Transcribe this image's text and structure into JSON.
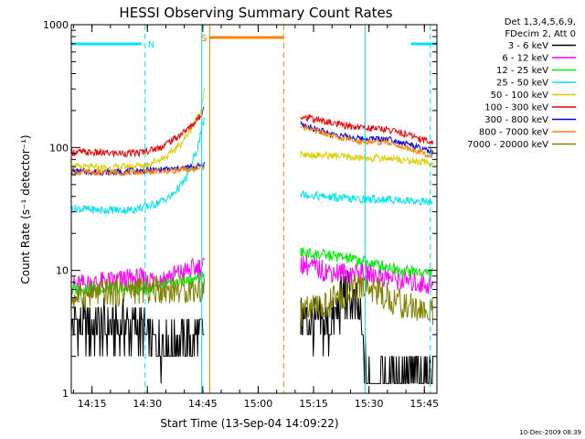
{
  "chart_data": {
    "type": "line",
    "title": "HESSI Observing Summary Count Rates",
    "xlabel": "Start Time (13-Sep-04 14:09:22)",
    "ylabel": "Count Rate (s⁻¹ detector⁻¹)",
    "yscale": "log",
    "ylim": [
      1,
      1000
    ],
    "xlim_minutes": [
      0,
      99
    ],
    "x_ticks": [
      {
        "label": "14:15",
        "t": 5.6
      },
      {
        "label": "14:30",
        "t": 20.6
      },
      {
        "label": "14:45",
        "t": 35.6
      },
      {
        "label": "15:00",
        "t": 50.6
      },
      {
        "label": "15:15",
        "t": 65.6
      },
      {
        "label": "15:30",
        "t": 80.6
      },
      {
        "label": "15:45",
        "t": 95.6
      }
    ],
    "y_ticks": [
      {
        "label": "1",
        "v": 1
      },
      {
        "label": "10",
        "v": 10
      },
      {
        "label": "100",
        "v": 100
      },
      {
        "label": "1000",
        "v": 1000
      }
    ],
    "legend_header": [
      "Det 1,3,4,5,6,9,",
      "FDecim 2, Att 0"
    ],
    "legend_position": "right",
    "grid": false,
    "timestamp": "10-Dec-2009 08:39",
    "markers": {
      "night": {
        "label": "N",
        "color": "#00e5ee",
        "t_start": 0.0,
        "t_end": 20.0,
        "t_resume": 92.0
      },
      "saa": {
        "label": "S",
        "color": "#ff8000",
        "t_start": 37.5,
        "t_end": 57.5
      }
    },
    "vertical_lines": [
      {
        "t": 20.0,
        "color": "#00e5ee",
        "style": "dashed"
      },
      {
        "t": 35.3,
        "color": "#00e5ee",
        "style": "solid"
      },
      {
        "t": 37.5,
        "color": "#ff8000",
        "style": "solid"
      },
      {
        "t": 57.5,
        "color": "#ff8000",
        "style": "dashed"
      },
      {
        "t": 79.6,
        "color": "#00e5ee",
        "style": "solid"
      },
      {
        "t": 97.2,
        "color": "#00e5ee",
        "style": "dashed"
      }
    ],
    "gaps": [
      [
        36.0,
        62.0
      ]
    ],
    "series": [
      {
        "name": "3 - 6 keV",
        "color": "#000000",
        "t": [
          0,
          10,
          18,
          22,
          26,
          30,
          34,
          36,
          62,
          70,
          74,
          78,
          80,
          90,
          98
        ],
        "values": [
          3.5,
          3.4,
          3.5,
          2.4,
          2.5,
          2.6,
          2.8,
          3.0,
          3.8,
          3.5,
          6.5,
          4.5,
          1.3,
          1.3,
          1.3
        ]
      },
      {
        "name": "6 - 12 keV",
        "color": "#ff00ff",
        "t": [
          0,
          8,
          16,
          24,
          32,
          36,
          62,
          68,
          74,
          80,
          88,
          98
        ],
        "values": [
          7.5,
          8.0,
          8.5,
          8.5,
          10.0,
          11.0,
          11.5,
          10.0,
          9.5,
          9.5,
          8.5,
          7.5
        ]
      },
      {
        "name": "12 - 25 keV",
        "color": "#00ee00",
        "t": [
          0,
          10,
          20,
          30,
          36,
          62,
          66,
          72,
          78,
          84,
          90,
          98
        ],
        "values": [
          7.0,
          7.0,
          7.0,
          8.0,
          9.0,
          14.0,
          13.5,
          13.0,
          12.0,
          11.0,
          10.0,
          9.5
        ]
      },
      {
        "name": "25 - 50 keV",
        "color": "#00e5ee",
        "t": [
          0,
          8,
          16,
          22,
          27,
          31,
          34,
          36,
          62,
          68,
          76,
          84,
          92,
          98
        ],
        "values": [
          32,
          31,
          31,
          34,
          40,
          55,
          95,
          170,
          42,
          40,
          38,
          38,
          37,
          36
        ]
      },
      {
        "name": "50 - 100 keV",
        "color": "#ddcc00",
        "t": [
          0,
          10,
          20,
          26,
          30,
          33,
          35,
          36,
          62,
          70,
          78,
          86,
          92,
          98
        ],
        "values": [
          70,
          68,
          72,
          85,
          110,
          150,
          200,
          290,
          88,
          86,
          82,
          82,
          78,
          74
        ]
      },
      {
        "name": "100 - 300 keV",
        "color": "#ee0000",
        "t": [
          0,
          10,
          18,
          24,
          28,
          32,
          35,
          36,
          62,
          68,
          74,
          80,
          86,
          92,
          98
        ],
        "values": [
          92,
          90,
          90,
          100,
          118,
          145,
          180,
          225,
          180,
          165,
          150,
          145,
          140,
          125,
          110
        ]
      },
      {
        "name": "300 - 800 keV",
        "color": "#0000ee",
        "t": [
          0,
          10,
          20,
          28,
          34,
          36,
          62,
          70,
          78,
          86,
          92,
          98
        ],
        "values": [
          64,
          63,
          65,
          67,
          70,
          74,
          155,
          130,
          118,
          118,
          105,
          90
        ]
      },
      {
        "name": "800 - 7000 keV",
        "color": "#ff8000",
        "t": [
          0,
          10,
          20,
          28,
          34,
          36,
          62,
          70,
          78,
          86,
          92,
          98
        ],
        "values": [
          63,
          62,
          63,
          65,
          67,
          70,
          150,
          125,
          112,
          110,
          97,
          85
        ]
      },
      {
        "name": "7000 - 20000 keV",
        "color": "#808000",
        "t": [
          0,
          8,
          16,
          24,
          30,
          36,
          62,
          68,
          74,
          80,
          86,
          92,
          98
        ],
        "values": [
          6.0,
          6.5,
          7.0,
          7.0,
          7.0,
          7.0,
          4.5,
          5.0,
          6.5,
          7.5,
          6.0,
          5.0,
          4.5
        ]
      }
    ]
  }
}
